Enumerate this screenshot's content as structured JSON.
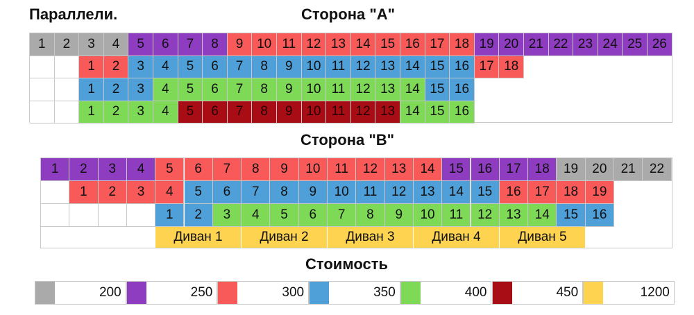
{
  "title_left": "Параллели.",
  "side_a_title": "Сторона \"A\"",
  "side_b_title": "Сторона \"B\"",
  "legend_title": "Стоимость",
  "colors": {
    "gray": "#aaaaaa",
    "purple": "#8e3cc0",
    "red": "#f85a5a",
    "blue": "#4f9fd8",
    "green": "#7ed957",
    "darkred": "#a80c14",
    "yellow": "#fdd34f"
  },
  "side_a_rows": [
    {
      "cells": [
        {
          "t": "1",
          "c": "gray"
        },
        {
          "t": "2",
          "c": "gray"
        },
        {
          "t": "3",
          "c": "gray"
        },
        {
          "t": "4",
          "c": "gray"
        },
        {
          "t": "5",
          "c": "purple"
        },
        {
          "t": "6",
          "c": "purple"
        },
        {
          "t": "7",
          "c": "purple"
        },
        {
          "t": "8",
          "c": "purple"
        },
        {
          "t": "9",
          "c": "red"
        },
        {
          "t": "10",
          "c": "red"
        },
        {
          "t": "11",
          "c": "red"
        },
        {
          "t": "12",
          "c": "red"
        },
        {
          "t": "13",
          "c": "red"
        },
        {
          "t": "14",
          "c": "red"
        },
        {
          "t": "15",
          "c": "red"
        },
        {
          "t": "16",
          "c": "red"
        },
        {
          "t": "17",
          "c": "red"
        },
        {
          "t": "18",
          "c": "red"
        },
        {
          "t": "19",
          "c": "purple"
        },
        {
          "t": "20",
          "c": "purple"
        },
        {
          "t": "21",
          "c": "purple"
        },
        {
          "t": "22",
          "c": "purple"
        },
        {
          "t": "23",
          "c": "purple"
        },
        {
          "t": "24",
          "c": "purple"
        },
        {
          "t": "25",
          "c": "purple"
        },
        {
          "t": "26",
          "c": "purple"
        }
      ]
    },
    {
      "cells": [
        {
          "t": "",
          "c": ""
        },
        {
          "t": "",
          "c": ""
        },
        {
          "t": "1",
          "c": "red"
        },
        {
          "t": "2",
          "c": "red"
        },
        {
          "t": "3",
          "c": "blue"
        },
        {
          "t": "4",
          "c": "blue"
        },
        {
          "t": "5",
          "c": "blue"
        },
        {
          "t": "6",
          "c": "blue"
        },
        {
          "t": "7",
          "c": "blue"
        },
        {
          "t": "8",
          "c": "blue"
        },
        {
          "t": "9",
          "c": "blue"
        },
        {
          "t": "10",
          "c": "blue"
        },
        {
          "t": "11",
          "c": "blue"
        },
        {
          "t": "12",
          "c": "blue"
        },
        {
          "t": "13",
          "c": "blue"
        },
        {
          "t": "14",
          "c": "blue"
        },
        {
          "t": "15",
          "c": "blue"
        },
        {
          "t": "16",
          "c": "blue"
        },
        {
          "t": "17",
          "c": "red"
        },
        {
          "t": "18",
          "c": "red"
        }
      ]
    },
    {
      "cells": [
        {
          "t": "",
          "c": ""
        },
        {
          "t": "",
          "c": ""
        },
        {
          "t": "1",
          "c": "blue"
        },
        {
          "t": "2",
          "c": "blue"
        },
        {
          "t": "3",
          "c": "blue"
        },
        {
          "t": "4",
          "c": "green"
        },
        {
          "t": "5",
          "c": "green"
        },
        {
          "t": "6",
          "c": "green"
        },
        {
          "t": "7",
          "c": "green"
        },
        {
          "t": "8",
          "c": "green"
        },
        {
          "t": "9",
          "c": "green"
        },
        {
          "t": "10",
          "c": "green"
        },
        {
          "t": "11",
          "c": "green"
        },
        {
          "t": "12",
          "c": "green"
        },
        {
          "t": "13",
          "c": "green"
        },
        {
          "t": "14",
          "c": "green"
        },
        {
          "t": "15",
          "c": "blue"
        },
        {
          "t": "16",
          "c": "blue"
        }
      ]
    },
    {
      "cells": [
        {
          "t": "",
          "c": ""
        },
        {
          "t": "",
          "c": ""
        },
        {
          "t": "1",
          "c": "green"
        },
        {
          "t": "2",
          "c": "green"
        },
        {
          "t": "3",
          "c": "green"
        },
        {
          "t": "4",
          "c": "green"
        },
        {
          "t": "5",
          "c": "darkred"
        },
        {
          "t": "6",
          "c": "darkred"
        },
        {
          "t": "7",
          "c": "darkred"
        },
        {
          "t": "8",
          "c": "darkred"
        },
        {
          "t": "9",
          "c": "darkred"
        },
        {
          "t": "10",
          "c": "darkred"
        },
        {
          "t": "11",
          "c": "darkred"
        },
        {
          "t": "12",
          "c": "darkred"
        },
        {
          "t": "13",
          "c": "darkred"
        },
        {
          "t": "14",
          "c": "green"
        },
        {
          "t": "15",
          "c": "green"
        },
        {
          "t": "16",
          "c": "green"
        }
      ]
    }
  ],
  "side_b_rows": [
    {
      "cells": [
        {
          "t": "1",
          "c": "purple"
        },
        {
          "t": "2",
          "c": "purple"
        },
        {
          "t": "3",
          "c": "purple"
        },
        {
          "t": "4",
          "c": "purple"
        },
        {
          "t": "5",
          "c": "red"
        },
        {
          "t": "6",
          "c": "red"
        },
        {
          "t": "7",
          "c": "red"
        },
        {
          "t": "8",
          "c": "red"
        },
        {
          "t": "9",
          "c": "red"
        },
        {
          "t": "10",
          "c": "red"
        },
        {
          "t": "11",
          "c": "red"
        },
        {
          "t": "12",
          "c": "red"
        },
        {
          "t": "13",
          "c": "red"
        },
        {
          "t": "14",
          "c": "red"
        },
        {
          "t": "15",
          "c": "purple"
        },
        {
          "t": "16",
          "c": "purple"
        },
        {
          "t": "17",
          "c": "purple"
        },
        {
          "t": "18",
          "c": "purple"
        },
        {
          "t": "19",
          "c": "gray"
        },
        {
          "t": "20",
          "c": "gray"
        },
        {
          "t": "21",
          "c": "gray"
        },
        {
          "t": "22",
          "c": "gray"
        }
      ]
    },
    {
      "cells": [
        {
          "t": "",
          "c": ""
        },
        {
          "t": "1",
          "c": "red"
        },
        {
          "t": "2",
          "c": "red"
        },
        {
          "t": "3",
          "c": "red"
        },
        {
          "t": "4",
          "c": "red"
        },
        {
          "t": "5",
          "c": "blue"
        },
        {
          "t": "6",
          "c": "blue"
        },
        {
          "t": "7",
          "c": "blue"
        },
        {
          "t": "8",
          "c": "blue"
        },
        {
          "t": "9",
          "c": "blue"
        },
        {
          "t": "10",
          "c": "blue"
        },
        {
          "t": "11",
          "c": "blue"
        },
        {
          "t": "12",
          "c": "blue"
        },
        {
          "t": "13",
          "c": "blue"
        },
        {
          "t": "14",
          "c": "blue"
        },
        {
          "t": "15",
          "c": "blue"
        },
        {
          "t": "16",
          "c": "red"
        },
        {
          "t": "17",
          "c": "red"
        },
        {
          "t": "18",
          "c": "red"
        },
        {
          "t": "19",
          "c": "red"
        }
      ]
    },
    {
      "cells": [
        {
          "t": "",
          "c": ""
        },
        {
          "t": "",
          "c": ""
        },
        {
          "t": "",
          "c": ""
        },
        {
          "t": "",
          "c": ""
        },
        {
          "t": "1",
          "c": "blue"
        },
        {
          "t": "2",
          "c": "blue"
        },
        {
          "t": "3",
          "c": "green"
        },
        {
          "t": "4",
          "c": "green"
        },
        {
          "t": "5",
          "c": "green"
        },
        {
          "t": "6",
          "c": "green"
        },
        {
          "t": "7",
          "c": "green"
        },
        {
          "t": "8",
          "c": "green"
        },
        {
          "t": "9",
          "c": "green"
        },
        {
          "t": "10",
          "c": "green"
        },
        {
          "t": "11",
          "c": "green"
        },
        {
          "t": "12",
          "c": "green"
        },
        {
          "t": "13",
          "c": "green"
        },
        {
          "t": "14",
          "c": "green"
        },
        {
          "t": "15",
          "c": "blue"
        },
        {
          "t": "16",
          "c": "blue"
        }
      ]
    }
  ],
  "sofas": [
    {
      "t": "Диван 1",
      "c": "yellow"
    },
    {
      "t": "Диван 2",
      "c": "yellow"
    },
    {
      "t": "Диван 3",
      "c": "yellow"
    },
    {
      "t": "Диван 4",
      "c": "yellow"
    },
    {
      "t": "Диван 5",
      "c": "yellow"
    }
  ],
  "legend": [
    {
      "c": "gray",
      "price": "200"
    },
    {
      "c": "purple",
      "price": "250"
    },
    {
      "c": "red",
      "price": "300"
    },
    {
      "c": "blue",
      "price": "350"
    },
    {
      "c": "green",
      "price": "400"
    },
    {
      "c": "darkred",
      "price": "450"
    },
    {
      "c": "yellow",
      "price": "1200"
    }
  ]
}
